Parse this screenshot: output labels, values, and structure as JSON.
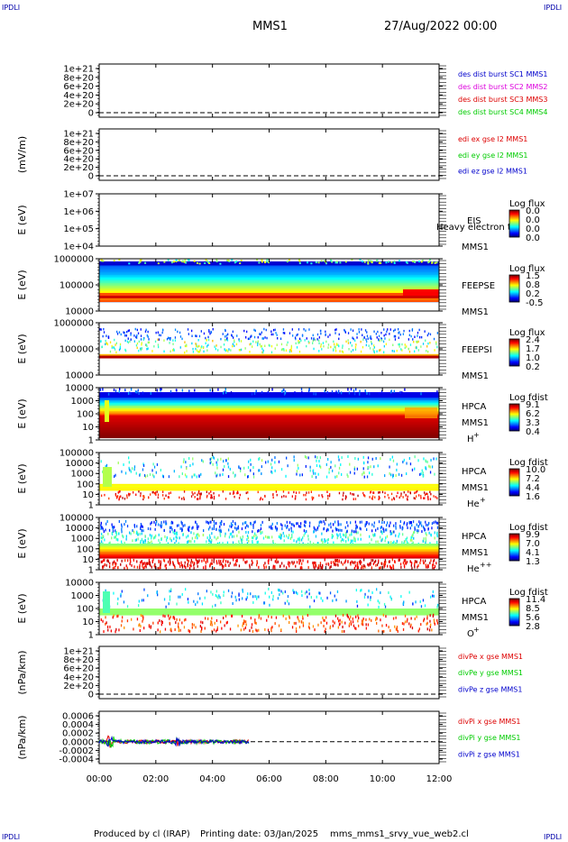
{
  "header": {
    "corner_label": "IPDLI",
    "spacecraft": "MMS1",
    "datetime": "27/Aug/2022 00:00"
  },
  "footer": {
    "produced_by": "Produced by cl (IRAP)",
    "printing_date": "Printing date: 03/Jan/2025",
    "file_name": "mms_mms1_srvy_vue_web2.cl"
  },
  "colors": {
    "red": "#dd0000",
    "green": "#00cc00",
    "blue": "#0000cc",
    "magenta": "#dd00dd"
  },
  "chart_data": {
    "type": "heatmap",
    "x_ticks": [
      "00:00",
      "02:00",
      "04:00",
      "06:00",
      "08:00",
      "10:00",
      "12:00"
    ],
    "panels": [
      {
        "id": "p1",
        "kind": "line",
        "ylabel": "",
        "yticks": [
          "1e+21",
          "8e+20",
          "6e+20",
          "4e+20",
          "2e+20",
          "0"
        ],
        "legend": [
          {
            "name": "des dist burst SC1 MMS1",
            "color": "#0000cc"
          },
          {
            "name": "des dist burst SC2 MMS2",
            "color": "#dd00dd"
          },
          {
            "name": "des dist burst SC3 MMS3",
            "color": "#dd0000"
          },
          {
            "name": "des dist burst SC4 MMS4",
            "color": "#00cc00"
          }
        ]
      },
      {
        "id": "p2",
        "kind": "line",
        "ylabel": "(mV/m)",
        "yticks": [
          "1e+21",
          "8e+20",
          "6e+20",
          "4e+20",
          "2e+20",
          "0"
        ],
        "legend": [
          {
            "name": "edi ex gse l2 MMS1",
            "color": "#dd0000"
          },
          {
            "name": "edi ey gse l2 MMS1",
            "color": "#00cc00"
          },
          {
            "name": "edi ez gse l2 MMS1",
            "color": "#0000cc"
          }
        ]
      },
      {
        "id": "p3",
        "kind": "spec",
        "ylabel": "E (eV)",
        "yticks": [
          "1e+07",
          "1e+06",
          "1e+05",
          "1e+04"
        ],
        "instrument": [
          "EIS",
          "MMS1"
        ],
        "overlay": "Heavy electron to",
        "colorbar_title": "Log flux",
        "colorbar_ticks": [
          "0.0",
          "0.0",
          "0.0",
          "0.0"
        ],
        "fill": "none"
      },
      {
        "id": "p4",
        "kind": "spec",
        "ylabel": "E (eV)",
        "yticks": [
          "1000000",
          "100000",
          "10000"
        ],
        "instrument": [
          "FEEPSE",
          "MMS1"
        ],
        "colorbar_title": "Log flux",
        "colorbar_ticks": [
          "1.5",
          "0.8",
          "0.2",
          "-0.5"
        ],
        "fill": "feepse"
      },
      {
        "id": "p5",
        "kind": "spec",
        "ylabel": "E (eV)",
        "yticks": [
          "1000000",
          "100000",
          "10000"
        ],
        "instrument": [
          "FEEPSI",
          "MMS1"
        ],
        "colorbar_title": "Log flux",
        "colorbar_ticks": [
          "2.4",
          "1.7",
          "1.0",
          "0.2"
        ],
        "fill": "feepsi"
      },
      {
        "id": "p6",
        "kind": "spec",
        "ylabel": "E (eV)",
        "yticks": [
          "10000",
          "1000",
          "100",
          "10",
          "1"
        ],
        "instrument": [
          "HPCA",
          "MMS1",
          "H+"
        ],
        "colorbar_title": "Log fdist",
        "colorbar_ticks": [
          "9.1",
          "6.2",
          "3.3",
          "0.4"
        ],
        "fill": "hplus"
      },
      {
        "id": "p7",
        "kind": "spec",
        "ylabel": "E (eV)",
        "yticks": [
          "100000",
          "10000",
          "1000",
          "100",
          "10",
          "1"
        ],
        "instrument": [
          "HPCA",
          "MMS1",
          "He+"
        ],
        "colorbar_title": "Log fdist",
        "colorbar_ticks": [
          "10.0",
          "7.2",
          "4.4",
          "1.6"
        ],
        "fill": "heplus"
      },
      {
        "id": "p8",
        "kind": "spec",
        "ylabel": "E (eV)",
        "yticks": [
          "100000",
          "10000",
          "1000",
          "100",
          "10",
          "1"
        ],
        "instrument": [
          "HPCA",
          "MMS1",
          "He++"
        ],
        "colorbar_title": "Log fdist",
        "colorbar_ticks": [
          "9.9",
          "7.0",
          "4.1",
          "1.3"
        ],
        "fill": "hepp"
      },
      {
        "id": "p9",
        "kind": "spec",
        "ylabel": "E (eV)",
        "yticks": [
          "10000",
          "1000",
          "100",
          "10",
          "1"
        ],
        "instrument": [
          "HPCA",
          "MMS1",
          "O+"
        ],
        "colorbar_title": "Log fdist",
        "colorbar_ticks": [
          "11.4",
          "8.5",
          "5.6",
          "2.8"
        ],
        "fill": "oplus"
      },
      {
        "id": "p10",
        "kind": "line",
        "ylabel": "(nPa/km)",
        "yticks": [
          "1e+21",
          "8e+20",
          "6e+20",
          "4e+20",
          "2e+20",
          "0"
        ],
        "legend": [
          {
            "name": "divPe x gse MMS1",
            "color": "#dd0000"
          },
          {
            "name": "divPe y gse MMS1",
            "color": "#00cc00"
          },
          {
            "name": "divPe z gse MMS1",
            "color": "#0000cc"
          }
        ]
      },
      {
        "id": "p11",
        "kind": "line",
        "ylabel": "(nPa/km)",
        "yticks": [
          "0.0006",
          "0.0004",
          "0.0002",
          "0.0000",
          "-0.0002",
          "-0.0004"
        ],
        "data_until_hour": 5.3,
        "legend": [
          {
            "name": "divPi x gse MMS1",
            "color": "#dd0000"
          },
          {
            "name": "divPi y gse MMS1",
            "color": "#00cc00"
          },
          {
            "name": "divPi z gse MMS1",
            "color": "#0000cc"
          }
        ]
      }
    ]
  }
}
